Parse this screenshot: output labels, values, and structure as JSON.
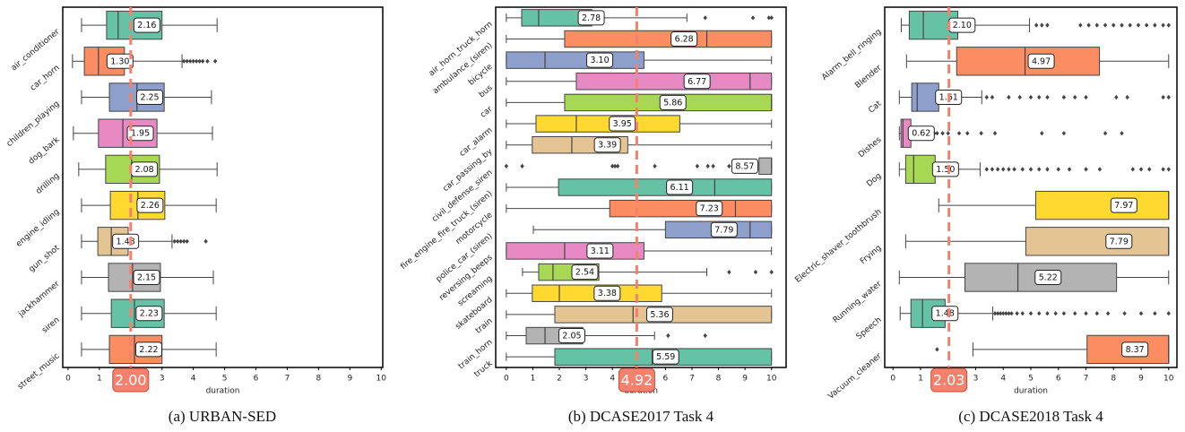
{
  "chart_data": [
    {
      "type": "box",
      "title": "(a) URBAN-SED",
      "xlabel": "duration",
      "categories": [
        "air_conditioner",
        "car_horn",
        "children_playing",
        "dog_bark",
        "drilling",
        "engine_idling",
        "gun_shot",
        "jackhammer",
        "siren",
        "street_music"
      ],
      "whislo": [
        0.43,
        0.14,
        0.43,
        0.17,
        0.34,
        0.43,
        0.43,
        0.43,
        0.43,
        0.43
      ],
      "q1": [
        1.23,
        0.52,
        1.32,
        0.97,
        1.2,
        1.35,
        0.95,
        1.29,
        1.38,
        1.32
      ],
      "med": [
        1.6,
        0.97,
        2.2,
        1.75,
        2.03,
        2.23,
        1.38,
        2.06,
        2.12,
        2.12
      ],
      "q3": [
        3.0,
        1.8,
        3.07,
        2.84,
        2.92,
        3.09,
        1.92,
        2.95,
        3.07,
        3.0
      ],
      "whishi": [
        4.76,
        3.64,
        4.58,
        4.61,
        4.76,
        4.73,
        3.32,
        4.64,
        4.73,
        4.73
      ],
      "outliers": [
        [],
        [
          3.7,
          3.8,
          3.9,
          4.0,
          4.1,
          4.2,
          4.3,
          4.45,
          4.7
        ],
        [],
        [],
        [],
        [],
        [
          3.4,
          3.5,
          3.6,
          3.7,
          3.8,
          4.4
        ],
        [],
        [],
        []
      ],
      "means": [
        2.16,
        1.3,
        2.25,
        1.95,
        2.08,
        2.26,
        1.48,
        2.15,
        2.23,
        2.22
      ],
      "value_labels": [
        "2.16",
        "1.30",
        "2.25",
        "1.95",
        "2.08",
        "2.26",
        "1.48",
        "2.15",
        "2.23",
        "2.22"
      ],
      "mean": 2.0,
      "mean_label": "2.00",
      "mean_color": "#f4806e",
      "colors": [
        "#66c2a5",
        "#fc8d62",
        "#8da0cb",
        "#e78ac3",
        "#a6d854",
        "#ffd92f",
        "#e5c494",
        "#b3b3b3",
        "#66c2a5",
        "#fc8d62"
      ],
      "xlim": [
        -0.17,
        10.05
      ],
      "xticks": [
        0,
        1,
        2,
        3,
        4,
        5,
        6,
        7,
        8,
        9,
        10
      ]
    },
    {
      "type": "box",
      "title": "(b) DCASE2017 Task 4",
      "xlabel": "duration",
      "categories": [
        "air_horn_truck_horn",
        "ambulance_(siren)",
        "bicycle",
        "bus",
        "car",
        "car_alarm",
        "car_passing_by",
        "civil_defense_siren",
        "fire_engine_fire_truck_(siren)",
        "motorcycle",
        "police_car_(siren)",
        "reversing_beeps",
        "screaming",
        "skateboard",
        "train",
        "train_horn",
        "truck"
      ],
      "whislo": [
        0,
        0,
        0,
        0,
        0,
        0,
        0,
        9.53,
        0,
        0,
        1.02,
        0,
        0.61,
        0,
        0,
        0,
        0
      ],
      "q1": [
        0.58,
        2.2,
        0,
        2.64,
        2.2,
        1.12,
        0.98,
        9.53,
        1.97,
        3.9,
        6.0,
        0,
        1.22,
        0.98,
        1.83,
        0.75,
        1.83
      ],
      "med": [
        1.22,
        7.56,
        1.46,
        9.19,
        10,
        2.64,
        2.47,
        10,
        7.86,
        8.64,
        9.19,
        2.2,
        1.76,
        2.0,
        4.78,
        1.46,
        5.5
      ],
      "q3": [
        3.22,
        10,
        5.19,
        10,
        10,
        6.54,
        4.58,
        10,
        10,
        10,
        10,
        5.19,
        3.49,
        5.86,
        10,
        2.88,
        10
      ],
      "whishi": [
        6.81,
        10,
        10,
        10,
        10,
        10,
        10,
        10,
        10,
        10,
        10,
        10,
        7.56,
        10,
        10,
        5.59,
        10
      ],
      "outliers": [
        [
          7.5,
          9.3,
          9.9,
          10
        ],
        [],
        [],
        [],
        [],
        [],
        [],
        [
          0,
          0.6,
          4.0,
          4.1,
          4.2,
          5.6,
          7.2,
          7.6,
          7.8,
          8.4
        ],
        [],
        [],
        [],
        [],
        [
          8.4,
          9.4,
          10
        ],
        [],
        [],
        [
          6.1,
          7.5
        ],
        []
      ],
      "means": [
        2.78,
        6.28,
        3.1,
        6.77,
        5.86,
        3.95,
        3.39,
        8.57,
        6.11,
        7.23,
        7.79,
        3.11,
        2.54,
        3.38,
        5.36,
        2.05,
        5.59
      ],
      "value_labels": [
        "2.78",
        "6.28",
        "3.10",
        "6.77",
        "5.86",
        "3.95",
        "3.39",
        "8.57",
        "6.11",
        "7.23",
        "7.79",
        "3.11",
        "2.54",
        "3.38",
        "5.36",
        "2.05",
        "5.59"
      ],
      "mean": 4.92,
      "mean_label": "4.92",
      "mean_color": "#f4806e",
      "colors": [
        "#66c2a5",
        "#fc8d62",
        "#8da0cb",
        "#e78ac3",
        "#a6d854",
        "#ffd92f",
        "#e5c494",
        "#b3b3b3",
        "#66c2a5",
        "#fc8d62",
        "#8da0cb",
        "#e78ac3",
        "#a6d854",
        "#ffd92f",
        "#e5c494",
        "#b3b3b3",
        "#66c2a5"
      ],
      "xlim": [
        -0.4,
        10.55
      ],
      "xticks": [
        0,
        1,
        2,
        3,
        4,
        5,
        6,
        7,
        8,
        9,
        10
      ]
    },
    {
      "type": "box",
      "title": "(c) DCASE2018 Task 4",
      "xlabel": "duration",
      "categories": [
        "Alarm_bell_ringing",
        "Blender",
        "Cat",
        "Dishes",
        "Dog",
        "Electric_shaver_toothbrush",
        "Frying",
        "Running_water",
        "Speech",
        "Vacuum_cleaner"
      ],
      "whislo": [
        0.3,
        0.49,
        0.23,
        0.23,
        0.23,
        1.66,
        0.46,
        0.23,
        0.26,
        2.9
      ],
      "q1": [
        0.59,
        2.31,
        0.68,
        0.29,
        0.46,
        5.18,
        4.82,
        2.61,
        0.65,
        7.04
      ],
      "med": [
        1.1,
        4.79,
        0.88,
        0.36,
        0.75,
        10,
        10,
        4.53,
        1.07,
        10
      ],
      "q3": [
        2.35,
        7.49,
        1.66,
        0.65,
        1.53,
        10,
        10,
        8.11,
        1.89,
        10
      ],
      "whishi": [
        4.95,
        10,
        3.22,
        1.1,
        3.16,
        10,
        10,
        10,
        3.62,
        10
      ],
      "outliers": [
        [
          5.2,
          5.4,
          5.6,
          6.8,
          7.1,
          7.4,
          7.7,
          8.0,
          8.3,
          8.6,
          8.9,
          9.2,
          9.5,
          9.8,
          10
        ],
        [],
        [
          3.4,
          3.6,
          4.2,
          4.6,
          5.0,
          5.3,
          5.6,
          6.2,
          6.6,
          7.0,
          8.1,
          8.5,
          9.8,
          10
        ],
        [
          1.2,
          1.3,
          1.4,
          1.5,
          1.6,
          1.8,
          2.0,
          2.4,
          2.7,
          3.2,
          3.7,
          5.4,
          6.2,
          7.7,
          8.3
        ],
        [
          3.4,
          3.6,
          3.8,
          4.0,
          4.2,
          4.4,
          4.7,
          5.0,
          5.3,
          5.6,
          6.0,
          6.4,
          7.0,
          7.5,
          8.7,
          9.0,
          9.3,
          9.8,
          10
        ],
        [],
        [],
        [],
        [
          3.7,
          3.8,
          3.9,
          4.0,
          4.1,
          4.2,
          4.3,
          4.5,
          4.7,
          5.0,
          5.3,
          5.6,
          5.9,
          6.2,
          6.6,
          7.0,
          7.4,
          7.8,
          8.4,
          9.0,
          9.5,
          10
        ],
        [
          1.6
        ]
      ],
      "means": [
        2.1,
        4.97,
        1.61,
        0.62,
        1.5,
        7.97,
        7.79,
        5.22,
        1.48,
        8.37
      ],
      "value_labels": [
        "2.10",
        "4.97",
        "1.61",
        "0.62",
        "1.50",
        "7.97",
        "7.79",
        "5.22",
        "1.48",
        "8.37"
      ],
      "mean": 2.03,
      "mean_label": "2.03",
      "mean_color": "#f4806e",
      "colors": [
        "#66c2a5",
        "#fc8d62",
        "#8da0cb",
        "#e78ac3",
        "#a6d854",
        "#ffd92f",
        "#e5c494",
        "#b3b3b3",
        "#66c2a5",
        "#fc8d62"
      ],
      "xlim": [
        -0.3,
        10.3
      ],
      "xticks": [
        0,
        1,
        2,
        3,
        4,
        5,
        6,
        7,
        8,
        9,
        10
      ]
    }
  ]
}
